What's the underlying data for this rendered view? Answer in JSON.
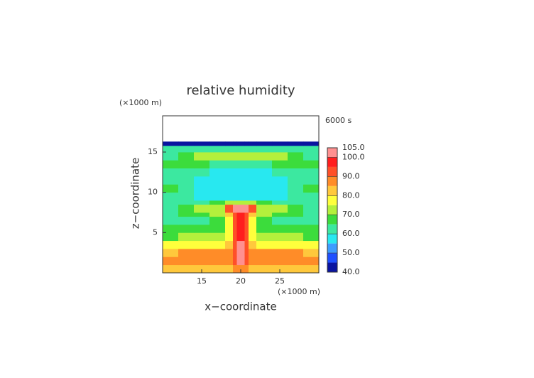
{
  "chart_data": {
    "type": "contour",
    "title": "relative humidity",
    "time_label": "6000 s",
    "xlabel": "x−coordinate",
    "ylabel": "z−coordinate",
    "xunit": "(×1000 m)",
    "yunit": "(×1000 m)",
    "xlim": [
      10,
      30
    ],
    "ylim": [
      0,
      19.5
    ],
    "xticks": [
      15,
      20,
      25
    ],
    "yticks": [
      5,
      10,
      15
    ],
    "x_edges": [
      10,
      12,
      14,
      16,
      18,
      19,
      19.5,
      20.5,
      21,
      22,
      24,
      26,
      28,
      30
    ],
    "z_edges": [
      0,
      1,
      2,
      3,
      4,
      5,
      6,
      7,
      7.5,
      8.5,
      9,
      10,
      11,
      12,
      13,
      14,
      15,
      15.8,
      16.3
    ],
    "values": [
      [
        82,
        82,
        82,
        82,
        84,
        86,
        88,
        86,
        84,
        82,
        82,
        82,
        82
      ],
      [
        87,
        87,
        87,
        87,
        88,
        92,
        101,
        92,
        88,
        87,
        87,
        87,
        87
      ],
      [
        84,
        85,
        85,
        85,
        86,
        92,
        101,
        92,
        86,
        85,
        85,
        85,
        84
      ],
      [
        76,
        77,
        78,
        78,
        80,
        92,
        101,
        92,
        80,
        78,
        78,
        77,
        76
      ],
      [
        69,
        70,
        71,
        72,
        78,
        92,
        97,
        92,
        78,
        72,
        71,
        70,
        69
      ],
      [
        66,
        66,
        67,
        68,
        76,
        92,
        97,
        92,
        76,
        68,
        67,
        66,
        66
      ],
      [
        62,
        63,
        64,
        66,
        76,
        92,
        97,
        92,
        76,
        66,
        64,
        63,
        62
      ],
      [
        64,
        65,
        68,
        70,
        82,
        94,
        97,
        94,
        82,
        70,
        68,
        65,
        64
      ],
      [
        64,
        66,
        70,
        74,
        92,
        101,
        102,
        101,
        92,
        74,
        70,
        66,
        64
      ],
      [
        62,
        63,
        64,
        66,
        70,
        72,
        74,
        72,
        70,
        66,
        64,
        63,
        62
      ],
      [
        64,
        60,
        58,
        57,
        57,
        57,
        57,
        57,
        57,
        57,
        58,
        60,
        64
      ],
      [
        66,
        62,
        57,
        56,
        56,
        56,
        56,
        56,
        56,
        56,
        57,
        62,
        66
      ],
      [
        62,
        60,
        57,
        56,
        56,
        56,
        56,
        56,
        56,
        56,
        57,
        60,
        62
      ],
      [
        63,
        62,
        60,
        59,
        58,
        58,
        58,
        58,
        58,
        59,
        60,
        62,
        63
      ],
      [
        66,
        65,
        65,
        64,
        64,
        64,
        64,
        64,
        64,
        64,
        65,
        65,
        66
      ],
      [
        64,
        66,
        72,
        73,
        73,
        73,
        73,
        73,
        73,
        73,
        72,
        66,
        64
      ],
      [
        62,
        62,
        63,
        64,
        64,
        64,
        64,
        64,
        64,
        64,
        63,
        62,
        62
      ],
      [
        43,
        43,
        43,
        43,
        43,
        43,
        43,
        43,
        43,
        43,
        43,
        43,
        43
      ]
    ],
    "levels": [
      40,
      45,
      50,
      55,
      60,
      65,
      70,
      75,
      80,
      85,
      90,
      95,
      100,
      105
    ],
    "colors": [
      "#0a14a0",
      "#1e50ff",
      "#3c9cff",
      "#28e8f0",
      "#3ce8a0",
      "#3cdc3c",
      "#b4f03c",
      "#ffff3c",
      "#ffc83c",
      "#ff8c28",
      "#ff5028",
      "#ff1e1e",
      "#ff9090"
    ],
    "colorbar_ticks": [
      {
        "value": 105,
        "label": "105.0"
      },
      {
        "value": 100,
        "label": "100.0"
      },
      {
        "value": 90,
        "label": "90.0"
      },
      {
        "value": 80,
        "label": "80.0"
      },
      {
        "value": 70,
        "label": "70.0"
      },
      {
        "value": 60,
        "label": "60.0"
      },
      {
        "value": 50,
        "label": "50.0"
      },
      {
        "value": 40,
        "label": "40.0"
      }
    ]
  }
}
